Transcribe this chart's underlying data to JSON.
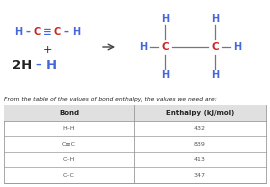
{
  "bg_color": "#ffffff",
  "text_color_blue": "#4466dd",
  "text_color_red": "#cc2222",
  "text_color_black": "#222222",
  "text_color_gray": "#555555",
  "arrow_color": "#444444",
  "table_header": [
    "Bond",
    "Enthalpy (kJ/mol)"
  ],
  "table_rows": [
    [
      "H–H",
      "432"
    ],
    [
      "C≡C",
      "839"
    ],
    [
      "C–H",
      "413"
    ],
    [
      "C–C",
      "347"
    ]
  ],
  "caption": "From the table of the values of bond enthalpy, the values we need are:",
  "line_color": "#999999",
  "mol_line_color": "#777777"
}
